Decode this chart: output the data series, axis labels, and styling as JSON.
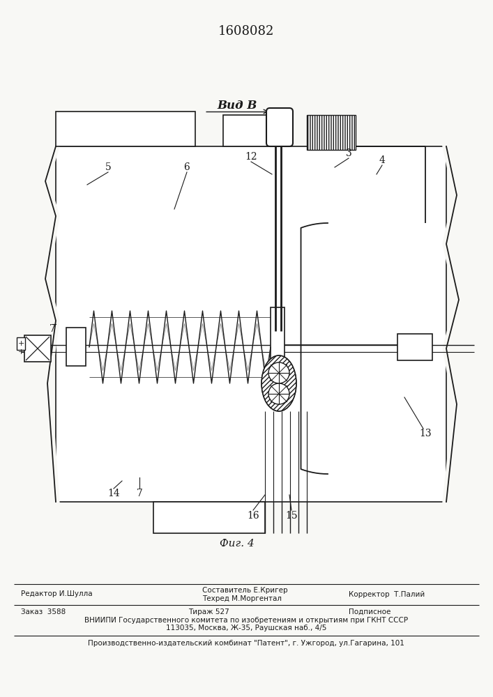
{
  "patent_number": "1608082",
  "view_label": "Вид В",
  "fig_label": "Фиг. 4",
  "bg_color": "#f8f8f5",
  "line_color": "#1a1a1a",
  "footer": {
    "editor": "Редактор И.Шулла",
    "composer_label": "Составитель Е.Кригер",
    "techred_label": "Техред М.Моргентал",
    "corrector": "Корректор  Т.Палий",
    "order": "Заказ  3588",
    "tirazh": "Тираж 527",
    "podpisnoe": "Подписное",
    "vniiipi_line1": "ВНИИПИ Государственного комитета по изобретениям и открытиям при ГКНТ СССР",
    "vniiipi_line2": "113035, Москва, Ж-35, Раушская наб., 4/5",
    "publisher": "Производственно-издательский комбинат \"Патент\", г. Ужгород, ул.Гагарина, 101"
  }
}
